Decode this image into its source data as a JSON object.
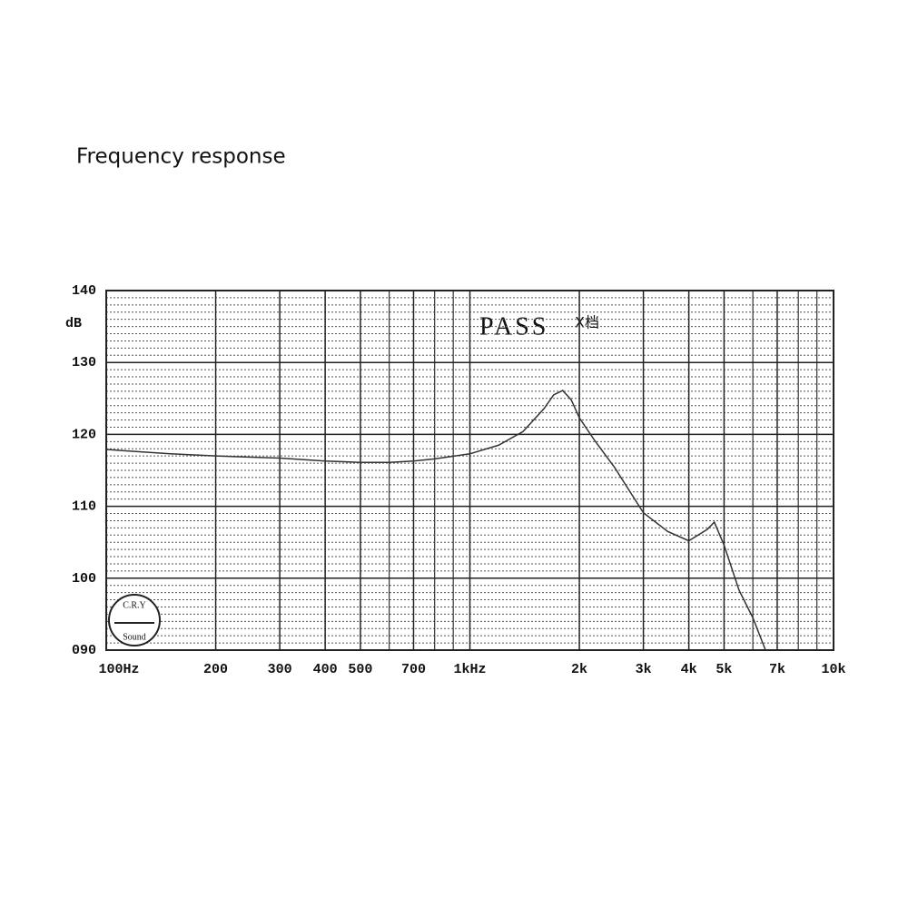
{
  "chart_data": {
    "type": "line",
    "title": "Frequency response",
    "y_label": "dB",
    "annotations": [
      "PASS",
      "X档",
      "C.R.Y",
      "Sound"
    ],
    "x": [
      100,
      150,
      200,
      300,
      400,
      500,
      600,
      700,
      800,
      1000,
      1200,
      1400,
      1600,
      1700,
      1800,
      1900,
      2000,
      2200,
      2500,
      3000,
      3500,
      4000,
      4500,
      4700,
      5000,
      5500,
      6000,
      6500
    ],
    "series": [
      {
        "name": "PASS",
        "color": "#333333",
        "values": [
          117.9,
          117.3,
          117.0,
          116.7,
          116.3,
          116.1,
          116.1,
          116.3,
          116.6,
          117.3,
          118.5,
          120.4,
          123.6,
          125.5,
          126.1,
          124.8,
          122.3,
          119.2,
          115.4,
          109.1,
          106.5,
          105.2,
          106.8,
          107.8,
          104.6,
          98.3,
          94.5,
          90
        ]
      }
    ],
    "xscale": "log",
    "xlim": [
      100,
      10000
    ],
    "ylim": [
      90,
      140
    ],
    "xticks": [
      {
        "value": 100,
        "label": "100Hz"
      },
      200,
      300,
      400,
      500,
      700,
      {
        "value": 1000,
        "label": "1kHz"
      },
      {
        "value": 2000,
        "label": "2k"
      },
      {
        "value": 3000,
        "label": "3k"
      },
      {
        "value": 4000,
        "label": "4k"
      },
      {
        "value": 5000,
        "label": "5k"
      },
      {
        "value": 7000,
        "label": "7k"
      },
      {
        "value": 10000,
        "label": "10k"
      }
    ],
    "x_minor_grid": [
      600,
      800,
      900,
      6000,
      8000,
      9000
    ],
    "yticks": [
      {
        "value": 90,
        "label": "090"
      },
      100,
      110,
      120,
      130,
      140
    ],
    "y_minor_step": 1,
    "grid": true
  }
}
